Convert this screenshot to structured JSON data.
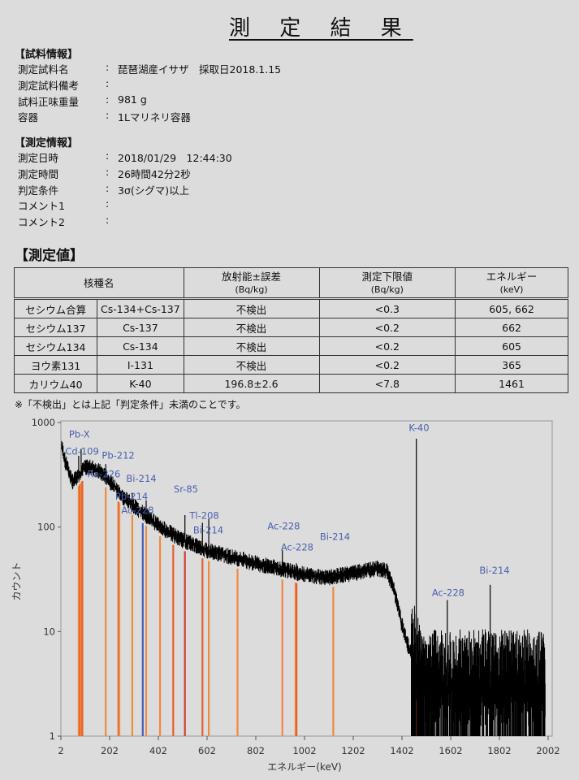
{
  "title": "測 定 結 果",
  "sample_info": {
    "heading": "【試料情報】",
    "rows": [
      {
        "label": "測定試料名",
        "value": "琵琶湖産イサザ　採取日2018.1.15"
      },
      {
        "label": "測定試料備考",
        "value": ""
      },
      {
        "label": "試料正味重量",
        "value": "981 g"
      },
      {
        "label": "容器",
        "value": "1Lマリネリ容器"
      }
    ]
  },
  "measurement_info": {
    "heading": "【測定情報】",
    "rows": [
      {
        "label": "測定日時",
        "value": "2018/01/29　12:44:30"
      },
      {
        "label": "測定時間",
        "value": "26時間42分2秒"
      },
      {
        "label": "判定条件",
        "value": "3σ(シグマ)以上"
      },
      {
        "label": "コメント1",
        "value": ""
      },
      {
        "label": "コメント2",
        "value": ""
      }
    ]
  },
  "colon": ":",
  "results": {
    "heading": "【測定値】",
    "headers": {
      "nuclide": "核種名",
      "activity": "放射能±誤差",
      "activity_unit": "(Bq/kg)",
      "limit": "測定下限値",
      "limit_unit": "(Bq/kg)",
      "energy": "エネルギー",
      "energy_unit": "(keV)"
    },
    "rows": [
      {
        "name": "セシウム合算",
        "symbol": "Cs-134+Cs-137",
        "activity": "不検出",
        "limit": "<0.3",
        "energy": "605, 662"
      },
      {
        "name": "セシウム137",
        "symbol": "Cs-137",
        "activity": "不検出",
        "limit": "<0.2",
        "energy": "662"
      },
      {
        "name": "セシウム134",
        "symbol": "Cs-134",
        "activity": "不検出",
        "limit": "<0.2",
        "energy": "605"
      },
      {
        "name": "ヨウ素131",
        "symbol": "I-131",
        "activity": "不検出",
        "limit": "<0.2",
        "energy": "365"
      },
      {
        "name": "カリウム40",
        "symbol": "K-40",
        "activity": "196.8±2.6",
        "limit": "<7.8",
        "energy": "1461"
      }
    ],
    "note": "※「不検出」とは上記「判定条件」未満のことです。"
  },
  "chart_data": {
    "type": "line",
    "xlabel": "エネルギー(keV)",
    "ylabel": "カウント",
    "xlim": [
      2,
      2002
    ],
    "ylim": [
      1,
      1000
    ],
    "yscale": "log",
    "xticks": [
      "2",
      "202",
      "402",
      "602",
      "802",
      "1002",
      "1202",
      "1402",
      "1602",
      "1802",
      "2002"
    ],
    "yticks": [
      "1",
      "10",
      "100",
      "1000"
    ],
    "spectrum_baseline": [
      [
        5,
        600
      ],
      [
        20,
        420
      ],
      [
        50,
        270
      ],
      [
        70,
        300
      ],
      [
        100,
        370
      ],
      [
        130,
        370
      ],
      [
        170,
        330
      ],
      [
        210,
        260
      ],
      [
        260,
        190
      ],
      [
        300,
        160
      ],
      [
        350,
        130
      ],
      [
        400,
        105
      ],
      [
        450,
        88
      ],
      [
        500,
        75
      ],
      [
        550,
        68
      ],
      [
        600,
        60
      ],
      [
        700,
        52
      ],
      [
        800,
        45
      ],
      [
        900,
        40
      ],
      [
        1000,
        35
      ],
      [
        1100,
        33
      ],
      [
        1200,
        36
      ],
      [
        1300,
        40
      ],
      [
        1340,
        38
      ],
      [
        1370,
        25
      ],
      [
        1400,
        12
      ],
      [
        1430,
        7
      ],
      [
        1460,
        5
      ],
      [
        1500,
        3
      ],
      [
        1600,
        3
      ],
      [
        1800,
        3
      ],
      [
        1990,
        3
      ]
    ],
    "peaks": [
      [
        75,
        480
      ],
      [
        85,
        560
      ],
      [
        186,
        400
      ],
      [
        239,
        250
      ],
      [
        295,
        210
      ],
      [
        352,
        180
      ],
      [
        511,
        130
      ],
      [
        583,
        110
      ],
      [
        609,
        120
      ],
      [
        911,
        60
      ],
      [
        969,
        45
      ],
      [
        1120,
        38
      ],
      [
        1461,
        700
      ],
      [
        1588,
        20
      ],
      [
        1764,
        28
      ]
    ],
    "markers": [
      {
        "energy": 75,
        "color": "#f08a3c"
      },
      {
        "energy": 80,
        "color": "#e6602a"
      },
      {
        "energy": 85,
        "color": "#f08a3c"
      },
      {
        "energy": 90,
        "color": "#e6602a"
      },
      {
        "energy": 186,
        "color": "#f08a3c"
      },
      {
        "energy": 238,
        "color": "#e6602a"
      },
      {
        "energy": 242,
        "color": "#f08a3c"
      },
      {
        "energy": 295,
        "color": "#f08a3c"
      },
      {
        "energy": 338,
        "color": "#4060c0"
      },
      {
        "energy": 352,
        "color": "#f08a3c"
      },
      {
        "energy": 409,
        "color": "#f08a3c"
      },
      {
        "energy": 463,
        "color": "#e6602a"
      },
      {
        "energy": 511,
        "color": "#d04030"
      },
      {
        "energy": 583,
        "color": "#e6602a"
      },
      {
        "energy": 609,
        "color": "#f08a3c"
      },
      {
        "energy": 727,
        "color": "#f08a3c"
      },
      {
        "energy": 911,
        "color": "#f08a3c"
      },
      {
        "energy": 965,
        "color": "#f08a3c"
      },
      {
        "energy": 969,
        "color": "#e6602a"
      },
      {
        "energy": 1120,
        "color": "#f08a3c"
      },
      {
        "energy": 1461,
        "color": "#d04030"
      },
      {
        "energy": 1588,
        "color": "#d04030"
      },
      {
        "energy": 1764,
        "color": "#d04030"
      }
    ],
    "labels": [
      {
        "text": "Pb-X",
        "energy": 35,
        "count": 720
      },
      {
        "text": "Cd-109",
        "energy": 20,
        "count": 620
      },
      {
        "text": "Ra-226",
        "energy": 110,
        "count": 600
      },
      {
        "text": "Pb-212",
        "energy": 170,
        "count": 450
      },
      {
        "text": "Pb-214",
        "energy": 225,
        "count": 230
      },
      {
        "text": "Ac-228",
        "energy": 250,
        "count": 215
      },
      {
        "text": "Bi-214",
        "energy": 270,
        "count": 215
      },
      {
        "text": "Sr-85",
        "energy": 465,
        "count": 215
      },
      {
        "text": "Tl-208",
        "energy": 530,
        "count": 120
      },
      {
        "text": "Bi-214",
        "energy": 545,
        "count": 110
      },
      {
        "text": "Ac-228",
        "energy": 850,
        "count": 95
      },
      {
        "text": "Ac-228",
        "energy": 905,
        "count": 75
      },
      {
        "text": "Bi-214",
        "energy": 1065,
        "count": 75
      },
      {
        "text": "K-40",
        "energy": 1430,
        "count": 1050
      },
      {
        "text": "Ac-228",
        "energy": 1525,
        "count": 22
      },
      {
        "text": "Bi-214",
        "energy": 1720,
        "count": 36
      }
    ],
    "colors": {
      "spectrum": "#000000",
      "label": "#4a5fb0"
    }
  }
}
